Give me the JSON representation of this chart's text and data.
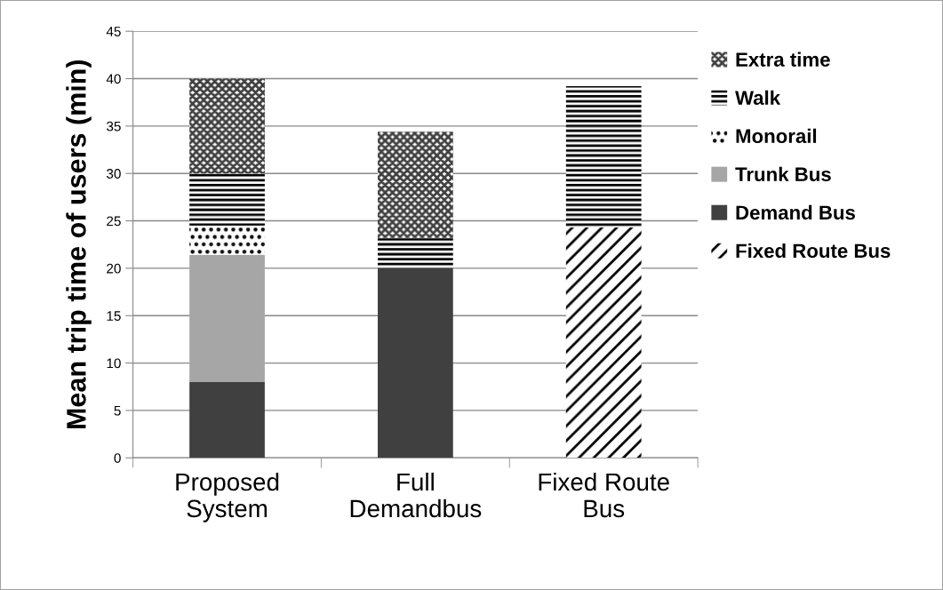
{
  "chart_data": {
    "type": "bar",
    "stacked": true,
    "ylabel": "Mean trip time of users (min)",
    "categories": [
      "Proposed\nSystem",
      "Full\nDemandbus",
      "Fixed Route\nBus"
    ],
    "series": [
      {
        "name": "Fixed Route Bus",
        "color": "#000000",
        "values": [
          null,
          null,
          24.3
        ]
      },
      {
        "name": "Demand Bus",
        "color": "#404040",
        "values": [
          8,
          20,
          null
        ]
      },
      {
        "name": "Trunk Bus",
        "color": "#a6a6a6",
        "values": [
          13.4,
          null,
          null
        ]
      },
      {
        "name": "Monorail",
        "color": "#000000",
        "values": [
          3.1,
          null,
          null
        ]
      },
      {
        "name": "Walk",
        "color": "#000000",
        "values": [
          5.5,
          3.2,
          14.9
        ]
      },
      {
        "name": "Extra time",
        "color": "#404040",
        "values": [
          10,
          11.2,
          null
        ]
      }
    ],
    "ylim": [
      0,
      45
    ],
    "yticks": [
      0,
      5,
      10,
      15,
      20,
      25,
      30,
      35,
      40,
      45
    ],
    "grid": "y",
    "legend": "right"
  }
}
